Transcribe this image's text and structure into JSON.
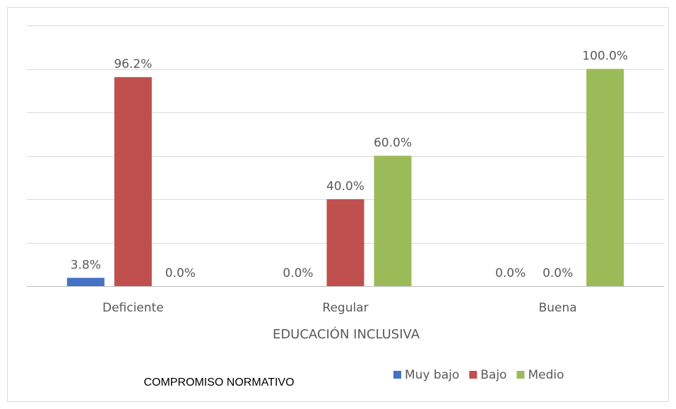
{
  "chart_data": {
    "type": "bar",
    "categories": [
      "Deficiente",
      "Regular",
      "Buena"
    ],
    "series": [
      {
        "name": "Muy bajo",
        "color": "#4472c4",
        "values": [
          3.8,
          0,
          0
        ],
        "value_labels": [
          "3.8%",
          "0.0%",
          "0.0%"
        ]
      },
      {
        "name": "Bajo",
        "color": "#c0504d",
        "values": [
          96.2,
          40,
          0
        ],
        "value_labels": [
          "96.2%",
          "40.0%",
          "0.0%"
        ]
      },
      {
        "name": "Medio",
        "color": "#9bbb59",
        "values": [
          0,
          60,
          100
        ],
        "value_labels": [
          "0.0%",
          "60.0%",
          "100.0%"
        ]
      }
    ],
    "xlabel": "EDUCACIÓN INCLUSIVA",
    "legend_title": "COMPROMISO NORMATIVO",
    "legend": "bottom",
    "ylim": [
      0,
      120
    ],
    "yticks": [
      0,
      20,
      40,
      60,
      80,
      100,
      120
    ],
    "grid": true
  }
}
